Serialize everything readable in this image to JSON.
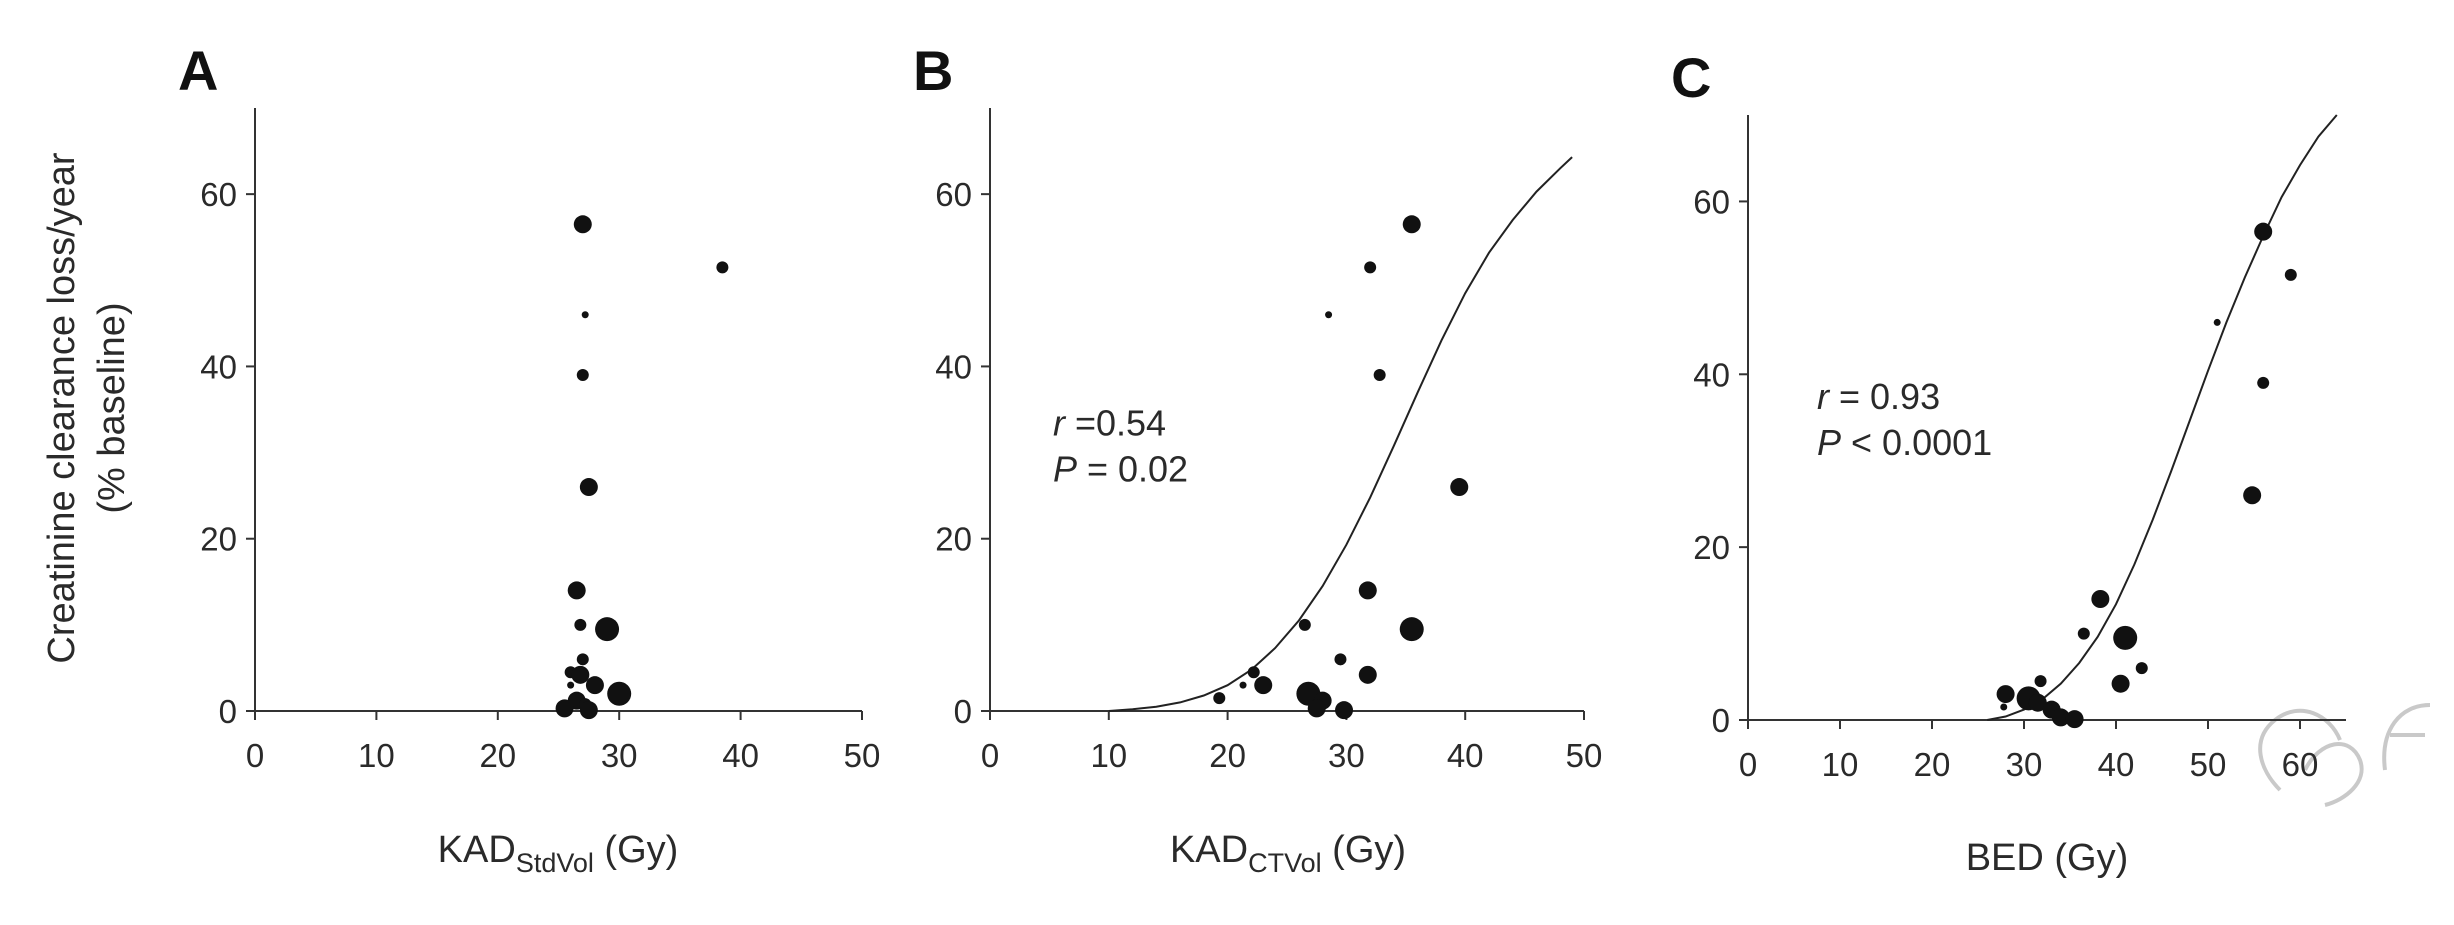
{
  "shared": {
    "y_axis_label_line1": "Creatinine clearance loss/year",
    "y_axis_label_line2": "(% baseline)"
  },
  "chart_data": [
    {
      "type": "scatter",
      "panel": "A",
      "xlabel": "KAD",
      "xlabel_sub": "StdVol",
      "xlabel_suffix": " (Gy)",
      "xlim": [
        0,
        50
      ],
      "ylim": [
        0,
        70
      ],
      "xticks": [
        0,
        10,
        20,
        30,
        40,
        50
      ],
      "yticks": [
        0,
        20,
        40,
        60
      ],
      "annotation": null,
      "fit_curve": false,
      "points": [
        {
          "x": 27.0,
          "y": 56.5,
          "size": "large"
        },
        {
          "x": 38.5,
          "y": 51.5,
          "size": "small"
        },
        {
          "x": 27.2,
          "y": 46.0,
          "size": "tiny"
        },
        {
          "x": 27.0,
          "y": 39.0,
          "size": "small"
        },
        {
          "x": 27.5,
          "y": 26.0,
          "size": "large"
        },
        {
          "x": 26.5,
          "y": 14.0,
          "size": "large"
        },
        {
          "x": 26.8,
          "y": 10.0,
          "size": "small"
        },
        {
          "x": 29.0,
          "y": 9.5,
          "size": "xlarge"
        },
        {
          "x": 27.0,
          "y": 6.0,
          "size": "small"
        },
        {
          "x": 26.0,
          "y": 4.5,
          "size": "small"
        },
        {
          "x": 26.8,
          "y": 4.2,
          "size": "large"
        },
        {
          "x": 26.0,
          "y": 3.0,
          "size": "tiny"
        },
        {
          "x": 28.0,
          "y": 3.0,
          "size": "large"
        },
        {
          "x": 30.0,
          "y": 2.0,
          "size": "xlarge"
        },
        {
          "x": 26.5,
          "y": 1.2,
          "size": "large"
        },
        {
          "x": 27.2,
          "y": 0.8,
          "size": "small"
        },
        {
          "x": 25.5,
          "y": 0.3,
          "size": "large"
        },
        {
          "x": 27.5,
          "y": 0.1,
          "size": "large"
        }
      ]
    },
    {
      "type": "scatter",
      "panel": "B",
      "xlabel": "KAD",
      "xlabel_sub": "CTVol",
      "xlabel_suffix": " (Gy)",
      "xlim": [
        0,
        50
      ],
      "ylim": [
        0,
        70
      ],
      "xticks": [
        0,
        10,
        20,
        30,
        40,
        50
      ],
      "yticks": [
        0,
        20,
        40,
        60
      ],
      "annotation": {
        "r_symbol": "r",
        "r_text": " =0.54",
        "p_symbol": "P",
        "p_text": " = 0.02",
        "x": 5.3,
        "y": 32
      },
      "fit_curve": true,
      "fit_curve_points": [
        [
          10,
          0
        ],
        [
          12,
          0.2
        ],
        [
          14,
          0.5
        ],
        [
          16,
          1.0
        ],
        [
          18,
          1.8
        ],
        [
          20,
          3.0
        ],
        [
          22,
          4.8
        ],
        [
          24,
          7.3
        ],
        [
          26,
          10.5
        ],
        [
          28,
          14.5
        ],
        [
          30,
          19.3
        ],
        [
          32,
          24.8
        ],
        [
          34,
          30.8
        ],
        [
          36,
          37.0
        ],
        [
          38,
          43.0
        ],
        [
          40,
          48.5
        ],
        [
          42,
          53.2
        ],
        [
          44,
          57.0
        ],
        [
          46,
          60.3
        ],
        [
          48,
          63.0
        ],
        [
          49,
          64.3
        ]
      ],
      "points": [
        {
          "x": 35.5,
          "y": 56.5,
          "size": "large"
        },
        {
          "x": 32.0,
          "y": 51.5,
          "size": "small"
        },
        {
          "x": 28.5,
          "y": 46.0,
          "size": "tiny"
        },
        {
          "x": 32.8,
          "y": 39.0,
          "size": "small"
        },
        {
          "x": 39.5,
          "y": 26.0,
          "size": "large"
        },
        {
          "x": 31.8,
          "y": 14.0,
          "size": "large"
        },
        {
          "x": 26.5,
          "y": 10.0,
          "size": "small"
        },
        {
          "x": 35.5,
          "y": 9.5,
          "size": "xlarge"
        },
        {
          "x": 29.5,
          "y": 6.0,
          "size": "small"
        },
        {
          "x": 22.2,
          "y": 4.5,
          "size": "small"
        },
        {
          "x": 31.8,
          "y": 4.2,
          "size": "large"
        },
        {
          "x": 21.3,
          "y": 3.0,
          "size": "tiny"
        },
        {
          "x": 23.0,
          "y": 3.0,
          "size": "large"
        },
        {
          "x": 26.8,
          "y": 2.0,
          "size": "xlarge"
        },
        {
          "x": 19.3,
          "y": 1.5,
          "size": "small"
        },
        {
          "x": 28.0,
          "y": 1.2,
          "size": "large"
        },
        {
          "x": 27.5,
          "y": 0.3,
          "size": "large"
        },
        {
          "x": 29.8,
          "y": 0.1,
          "size": "large"
        }
      ]
    },
    {
      "type": "scatter",
      "panel": "C",
      "xlabel": "BED",
      "xlabel_sub": "",
      "xlabel_suffix": " (Gy)",
      "xlim": [
        0,
        65
      ],
      "ylim": [
        0,
        70
      ],
      "xticks": [
        0,
        10,
        20,
        30,
        40,
        50,
        60
      ],
      "yticks": [
        0,
        20,
        40,
        60
      ],
      "annotation": {
        "r_symbol": "r",
        "r_text": " = 0.93",
        "p_symbol": "P",
        "p_text": " < 0.0001",
        "x": 7.5,
        "y": 36
      },
      "fit_curve": true,
      "fit_curve_points": [
        [
          26,
          0
        ],
        [
          28,
          0.4
        ],
        [
          30,
          1.2
        ],
        [
          32,
          2.4
        ],
        [
          34,
          4.2
        ],
        [
          36,
          6.6
        ],
        [
          38,
          9.6
        ],
        [
          40,
          13.4
        ],
        [
          42,
          18.0
        ],
        [
          44,
          23.2
        ],
        [
          46,
          28.8
        ],
        [
          48,
          34.6
        ],
        [
          50,
          40.4
        ],
        [
          52,
          46.0
        ],
        [
          54,
          51.2
        ],
        [
          56,
          56.0
        ],
        [
          58,
          60.5
        ],
        [
          60,
          64.2
        ],
        [
          62,
          67.5
        ],
        [
          64,
          70.0
        ]
      ],
      "points": [
        {
          "x": 56.0,
          "y": 56.5,
          "size": "large"
        },
        {
          "x": 59.0,
          "y": 51.5,
          "size": "small"
        },
        {
          "x": 51.0,
          "y": 46.0,
          "size": "tiny"
        },
        {
          "x": 56.0,
          "y": 39.0,
          "size": "small"
        },
        {
          "x": 54.8,
          "y": 26.0,
          "size": "large"
        },
        {
          "x": 38.3,
          "y": 14.0,
          "size": "large"
        },
        {
          "x": 36.5,
          "y": 10.0,
          "size": "small"
        },
        {
          "x": 41.0,
          "y": 9.5,
          "size": "xlarge"
        },
        {
          "x": 42.8,
          "y": 6.0,
          "size": "small"
        },
        {
          "x": 31.8,
          "y": 4.5,
          "size": "small"
        },
        {
          "x": 40.5,
          "y": 4.2,
          "size": "large"
        },
        {
          "x": 28.0,
          "y": 3.0,
          "size": "large"
        },
        {
          "x": 30.5,
          "y": 2.5,
          "size": "xlarge"
        },
        {
          "x": 31.5,
          "y": 2.0,
          "size": "large"
        },
        {
          "x": 27.8,
          "y": 1.5,
          "size": "tiny"
        },
        {
          "x": 33.0,
          "y": 1.2,
          "size": "large"
        },
        {
          "x": 34.0,
          "y": 0.3,
          "size": "large"
        },
        {
          "x": 35.5,
          "y": 0.1,
          "size": "large"
        }
      ]
    }
  ]
}
